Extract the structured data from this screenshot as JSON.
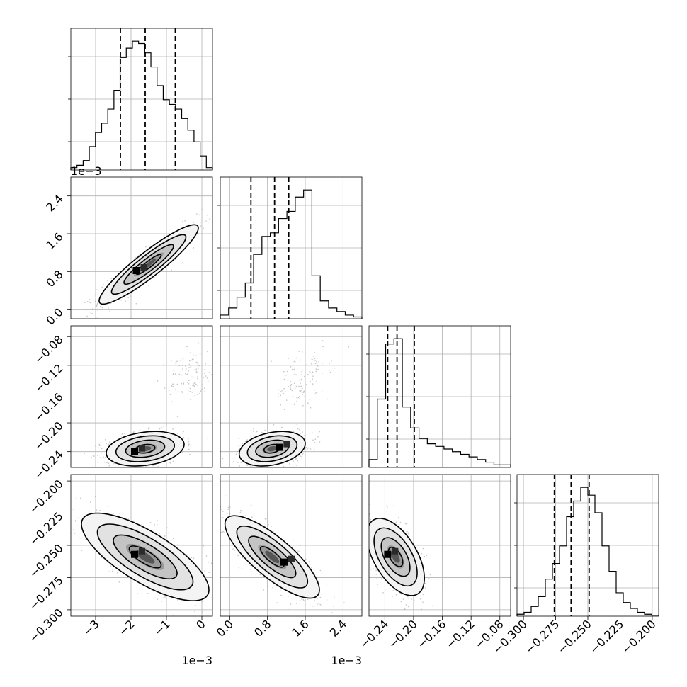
{
  "chart_data": {
    "type": "corner",
    "grid": true,
    "parameters": [
      {
        "ticks": [
          -3,
          -2,
          -1,
          0
        ],
        "tick_labels": [
          "−3",
          "−2",
          "−1",
          "0"
        ],
        "range": [
          -3.7,
          0.3
        ],
        "offset_text": "1e−3",
        "quantiles": [
          -2.3,
          -1.6,
          -0.75
        ],
        "histogram": [
          1,
          2,
          4,
          10,
          16,
          20,
          26,
          34,
          48,
          52,
          55,
          54,
          50,
          44,
          36,
          30,
          28,
          26,
          22,
          17,
          12,
          6,
          1
        ]
      },
      {
        "ticks": [
          0.0,
          0.8,
          1.6,
          2.4
        ],
        "tick_labels": [
          "0.0",
          "0.8",
          "1.6",
          "2.4"
        ],
        "range": [
          -0.2,
          2.8
        ],
        "offset_text": "1e−3",
        "quantiles": [
          0.45,
          0.95,
          1.25
        ],
        "histogram": [
          1,
          3,
          6,
          10,
          18,
          23,
          24,
          28,
          30,
          34,
          36,
          12,
          5,
          3,
          2,
          1,
          0.5
        ]
      },
      {
        "ticks": [
          -0.24,
          -0.2,
          -0.16,
          -0.12,
          -0.08
        ],
        "tick_labels": [
          "−0.24",
          "−0.20",
          "−0.16",
          "−0.12",
          "−0.08"
        ],
        "range": [
          -0.262,
          -0.065
        ],
        "offset_text": "",
        "quantiles": [
          -0.236,
          -0.223,
          -0.199
        ],
        "histogram": [
          3,
          26,
          47,
          49,
          23,
          15,
          11,
          9,
          8,
          7,
          6,
          5,
          4,
          3,
          2,
          1,
          1
        ]
      },
      {
        "ticks": [
          -0.3,
          -0.275,
          -0.25,
          -0.225,
          -0.2
        ],
        "tick_labels": [
          "−0.300",
          "−0.275",
          "−0.250",
          "−0.225",
          "−0.200"
        ],
        "range": [
          -0.305,
          -0.195
        ],
        "offset_text": "",
        "quantiles": [
          -0.276,
          -0.263,
          -0.249
        ],
        "histogram": [
          1,
          2,
          5,
          10,
          19,
          27,
          36,
          51,
          59,
          66,
          62,
          53,
          36,
          23,
          12,
          7,
          4,
          2,
          1,
          0.5
        ]
      }
    ],
    "y_axis_offset_text": "1e−3",
    "pairs": [
      {
        "x_param": 0,
        "y_param": 1,
        "mean": [
          -1.5,
          0.95
        ],
        "sd": [
          0.7,
          0.42
        ],
        "corr": 0.92,
        "mode": [
          -1.85,
          0.82
        ],
        "mode_tail": []
      },
      {
        "x_param": 0,
        "y_param": 2,
        "mean": [
          -1.6,
          -0.236
        ],
        "sd": [
          0.55,
          0.012
        ],
        "corr": 0.25,
        "mode": [
          -1.9,
          -0.24
        ],
        "mode_tail": [
          [
            -0.4,
            -0.15
          ],
          [
            -0.3,
            -0.12
          ]
        ]
      },
      {
        "x_param": 1,
        "y_param": 2,
        "mean": [
          0.9,
          -0.236
        ],
        "sd": [
          0.35,
          0.012
        ],
        "corr": 0.3,
        "mode": [
          1.05,
          -0.234
        ],
        "mode_tail": [
          [
            1.45,
            -0.157
          ],
          [
            1.65,
            -0.12
          ]
        ]
      },
      {
        "x_param": 0,
        "y_param": 3,
        "mean": [
          -1.6,
          -0.259
        ],
        "sd": [
          0.9,
          0.017
        ],
        "corr": -0.75,
        "mode": [
          -1.9,
          -0.257
        ],
        "mode_tail": []
      },
      {
        "x_param": 1,
        "y_param": 3,
        "mean": [
          0.9,
          -0.259
        ],
        "sd": [
          0.5,
          0.016
        ],
        "corr": -0.8,
        "mode": [
          1.15,
          -0.263
        ],
        "mode_tail": []
      },
      {
        "x_param": 2,
        "y_param": 3,
        "mean": [
          -0.225,
          -0.259
        ],
        "sd": [
          0.02,
          0.015
        ],
        "corr": -0.55,
        "mode": [
          -0.236,
          -0.257
        ],
        "mode_tail": []
      }
    ]
  }
}
